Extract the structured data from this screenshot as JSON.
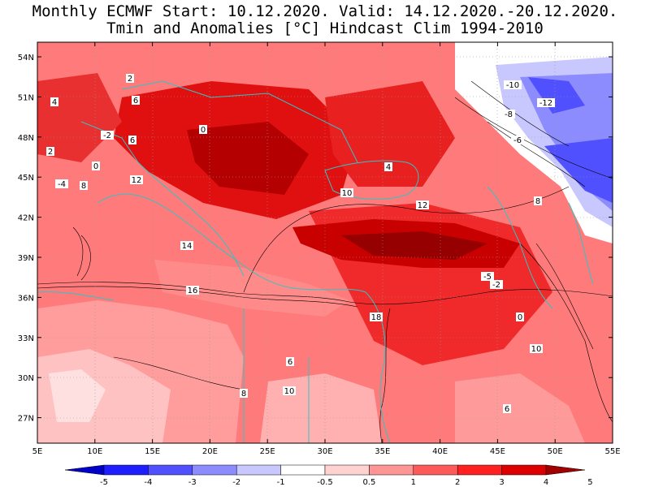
{
  "title": {
    "line1": "Monthly ECMWF Start: 10.12.2020. Valid: 14.12.2020.-20.12.2020.",
    "line2": "Tmin and Anomalies [°C] Hindcast Clim 1994-2010"
  },
  "axes": {
    "lon_ticks": [
      "5E",
      "10E",
      "15E",
      "20E",
      "25E",
      "30E",
      "35E",
      "40E",
      "45E",
      "50E",
      "55E"
    ],
    "lat_ticks": [
      "54N",
      "51N",
      "48N",
      "45N",
      "42N",
      "39N",
      "36N",
      "33N",
      "30N",
      "27N"
    ]
  },
  "colorbar": {
    "labels": [
      "-5",
      "-4",
      "-3",
      "-2",
      "-1",
      "-0.5",
      "0.5",
      "1",
      "2",
      "3",
      "4",
      "5"
    ],
    "colors": [
      "#0000c8",
      "#1e1eff",
      "#5050ff",
      "#8c8cff",
      "#c8c8ff",
      "#ffffff",
      "#ffd2d2",
      "#ff9696",
      "#ff5a5a",
      "#ff2020",
      "#dc0000",
      "#a00000"
    ]
  },
  "contour_labels": [
    {
      "text": "2"
    },
    {
      "text": "4"
    },
    {
      "text": "6"
    },
    {
      "text": "0"
    },
    {
      "text": "-2"
    },
    {
      "text": "-4"
    },
    {
      "text": "2"
    },
    {
      "text": "0"
    },
    {
      "text": "6"
    },
    {
      "text": "12"
    },
    {
      "text": "10"
    },
    {
      "text": "-10"
    },
    {
      "text": "-12"
    },
    {
      "text": "-8"
    },
    {
      "text": "-6"
    },
    {
      "text": "8"
    },
    {
      "text": "4"
    },
    {
      "text": "14"
    },
    {
      "text": "16"
    },
    {
      "text": "12"
    },
    {
      "text": "10"
    },
    {
      "text": "18"
    },
    {
      "text": "8"
    },
    {
      "text": "6"
    },
    {
      "text": "-5"
    },
    {
      "text": "-2"
    },
    {
      "text": "0"
    },
    {
      "text": "10"
    },
    {
      "text": "8"
    },
    {
      "text": "6"
    }
  ]
}
